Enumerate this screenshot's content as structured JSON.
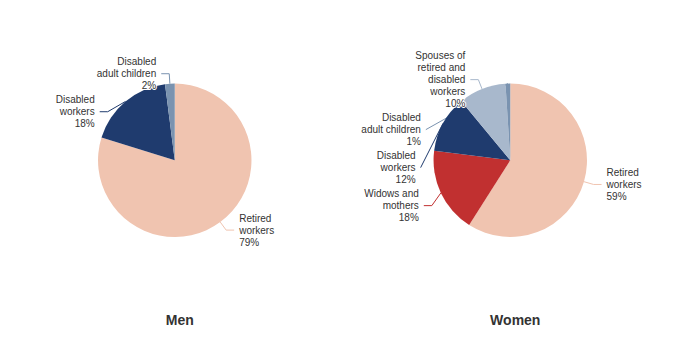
{
  "chart_data": [
    {
      "type": "pie",
      "title": "Men",
      "categories": [
        "Retired\nworkers",
        "Disabled\nworkers",
        "Disabled\nadult children"
      ],
      "values": [
        79,
        18,
        2
      ],
      "value_labels": [
        "79%",
        "18%",
        "2%"
      ],
      "colors": [
        "#F0C4B0",
        "#1F3B6E",
        "#7A93B0"
      ],
      "data_labels": true
    },
    {
      "type": "pie",
      "title": "Women",
      "categories": [
        "Retired\nworkers",
        "Widows and\nmothers",
        "Disabled\nworkers",
        "Spouses of\nretired and\ndisabled\nworkers",
        "Disabled\nadult children"
      ],
      "values": [
        59,
        18,
        12,
        10,
        1
      ],
      "value_labels": [
        "59%",
        "18%",
        "12%",
        "10%",
        "1%"
      ],
      "colors": [
        "#F0C4B0",
        "#C13030",
        "#1F3B6E",
        "#A8B8CC",
        "#7A93B0"
      ],
      "data_labels": true
    }
  ]
}
